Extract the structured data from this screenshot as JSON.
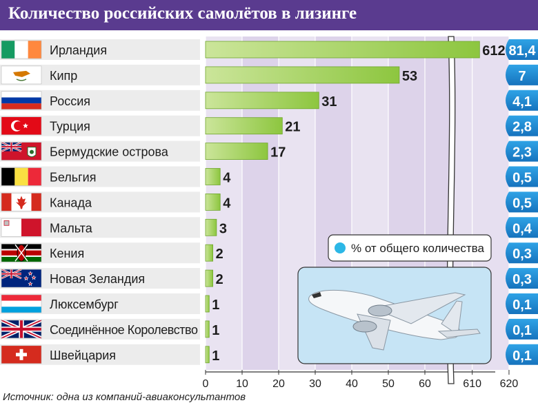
{
  "header": {
    "title": "Количество российских самолётов в лизинге"
  },
  "source": "Источник: одна из компаний-авиаконсультантов",
  "legend": {
    "text": "% от общего количества",
    "marker_color": "#2cb7e6"
  },
  "colors": {
    "header_bg": "#5a3b8f",
    "bar_green": "#8dc63f",
    "plot_bg": "#ddd3ea",
    "pct_box": "#1a86d0",
    "row_bg": "#ececec"
  },
  "chart_data": {
    "type": "bar",
    "orientation": "horizontal",
    "categories": [
      "Ирландия",
      "Кипр",
      "Россия",
      "Турция",
      "Бермудские острова",
      "Бельгия",
      "Канада",
      "Мальта",
      "Кения",
      "Новая Зеландия",
      "Люксембург",
      "Соединённое Королевство",
      "Швейцария"
    ],
    "flag_icons": [
      "ireland-flag-icon",
      "cyprus-flag-icon",
      "russia-flag-icon",
      "turkey-flag-icon",
      "bermuda-flag-icon",
      "belgium-flag-icon",
      "canada-flag-icon",
      "malta-flag-icon",
      "kenya-flag-icon",
      "new-zealand-flag-icon",
      "luxembourg-flag-icon",
      "uk-flag-icon",
      "switzerland-flag-icon"
    ],
    "values": [
      612,
      53,
      31,
      21,
      17,
      4,
      4,
      3,
      2,
      2,
      1,
      1,
      1
    ],
    "value_labels": [
      "612",
      "53",
      "31",
      "21",
      "17",
      "4",
      "4",
      "3",
      "2",
      "2",
      "1",
      "1",
      "1"
    ],
    "percent_labels": [
      "81,4",
      "7",
      "4,1",
      "2,8",
      "2,3",
      "0,5",
      "0,5",
      "0,4",
      "0,3",
      "0,3",
      "0,1",
      "0,1",
      "0,1"
    ],
    "x_ticks": [
      "0",
      "10",
      "20",
      "30",
      "40",
      "50",
      "60",
      "610",
      "620"
    ],
    "x_tick_values": [
      0,
      10,
      20,
      30,
      40,
      50,
      60,
      610,
      620
    ],
    "axis_break": [
      65,
      605
    ],
    "xlim": [
      0,
      620
    ],
    "grid": true
  }
}
